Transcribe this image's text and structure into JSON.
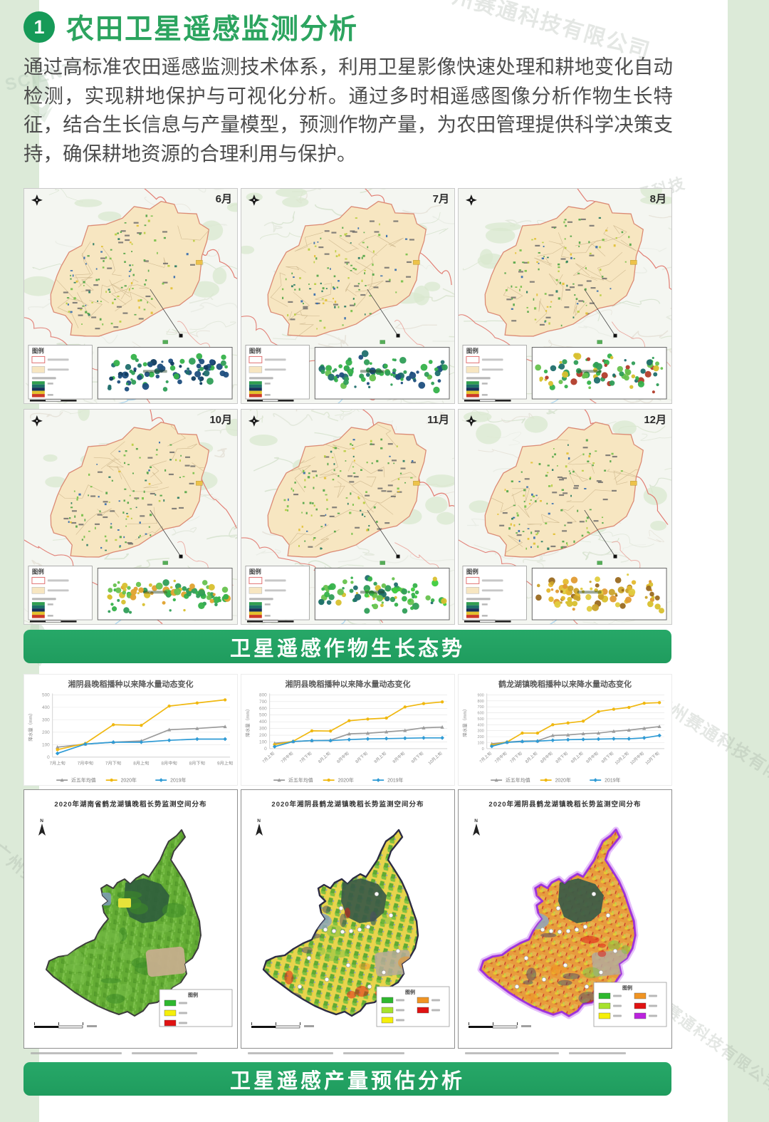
{
  "header": {
    "section_number": "1",
    "title": "农田卫星遥感监测分析",
    "paragraph": "通过高标准农田遥感监测技术体系，利用卫星影像快速处理和耕地变化自动检测，实现耕地保护与可视化分析。通过多时相遥感图像分析作物生长特征，结合生长信息与产量模型，预测作物产量，为农田管理提供科学决策支持，确保耕地资源的合理利用与保护。"
  },
  "colors": {
    "accent_green": "#23a263",
    "title_green": "#2ca45f",
    "page_bg": "#dcead8"
  },
  "watermarks": {
    "brand": "SCIENTO",
    "brand_cn": "赛通科技",
    "company": "广州赛通科技有限公司"
  },
  "satellite_maps": {
    "banner": "卫星遥感作物生长态势",
    "legend_title": "图例",
    "months": [
      "6月",
      "7月",
      "8月",
      "10月",
      "11月",
      "12月"
    ],
    "inset_palettes": [
      [
        "#1d4e7e",
        "#1d4e7e",
        "#0e3a5e",
        "#206f6d",
        "#2f9e57",
        "#2f9e57",
        "#35b24a"
      ],
      [
        "#2f9e57",
        "#2f9e57",
        "#35b24a",
        "#206f6d",
        "#1d4e7e",
        "#67c24e"
      ],
      [
        "#35b24a",
        "#2f9e57",
        "#67c24e",
        "#d8c02e",
        "#206f6d",
        "#b23c2a"
      ],
      [
        "#35b24a",
        "#67c24e",
        "#2f9e57",
        "#d8c02e",
        "#e0a22e"
      ],
      [
        "#3ecc3e",
        "#35b24a",
        "#2f9e57",
        "#67c24e",
        "#206f6d",
        "#d8c02e"
      ],
      [
        "#e5b92e",
        "#e09b33",
        "#caa32a",
        "#d8c02e",
        "#9a6a20",
        "#e0cc3e"
      ]
    ]
  },
  "chart_data": [
    {
      "type": "line",
      "title": "湘阴县晚稻播种以来降水量动态变化",
      "ylabel": "降水量（mm）",
      "ylim": [
        0,
        500
      ],
      "ytick": 100,
      "grid": true,
      "legend_position": "bottom",
      "categories": [
        "7月上旬",
        "7月中旬",
        "7月下旬",
        "8月上旬",
        "8月中旬",
        "8月下旬",
        "9月上旬"
      ],
      "series": [
        {
          "name": "近五年均值",
          "color": "#9b9b9b",
          "values": [
            80,
            105,
            120,
            130,
            220,
            230,
            245
          ]
        },
        {
          "name": "2020年",
          "color": "#f0b810",
          "values": [
            60,
            110,
            260,
            255,
            410,
            435,
            460
          ]
        },
        {
          "name": "2019年",
          "color": "#2f9bd5",
          "values": [
            30,
            105,
            120,
            120,
            135,
            145,
            145
          ]
        }
      ]
    },
    {
      "type": "line",
      "title": "湘阴县晚稻播种以来降水量动态变化",
      "ylabel": "降水量（mm）",
      "ylim": [
        0,
        800
      ],
      "ytick": 100,
      "grid": true,
      "legend_position": "bottom",
      "categories": [
        "7月上旬",
        "7月中旬",
        "7月下旬",
        "8月上旬",
        "8月中旬",
        "8月下旬",
        "9月上旬",
        "9月中旬",
        "9月下旬",
        "10月上旬"
      ],
      "series": [
        {
          "name": "近五年均值",
          "color": "#9b9b9b",
          "values": [
            80,
            105,
            120,
            125,
            220,
            230,
            250,
            270,
            310,
            320
          ]
        },
        {
          "name": "2020年",
          "color": "#f0b810",
          "values": [
            60,
            110,
            265,
            262,
            415,
            440,
            455,
            620,
            670,
            695
          ]
        },
        {
          "name": "2019年",
          "color": "#2f9bd5",
          "values": [
            30,
            105,
            120,
            120,
            135,
            145,
            150,
            155,
            160,
            160
          ]
        }
      ]
    },
    {
      "type": "line",
      "title": "鹤龙湖镇晚稻播种以来降水量动态变化",
      "ylabel": "降水量（mm）",
      "ylim": [
        0,
        900
      ],
      "ytick": 100,
      "grid": true,
      "legend_position": "bottom",
      "categories": [
        "7月上旬",
        "7月中旬",
        "7月下旬",
        "8月上旬",
        "8月中旬",
        "8月下旬",
        "9月上旬",
        "9月中旬",
        "9月下旬",
        "10月上旬",
        "10月中旬",
        "10月下旬"
      ],
      "series": [
        {
          "name": "近五年均值",
          "color": "#9b9b9b",
          "values": [
            80,
            110,
            125,
            130,
            220,
            230,
            250,
            260,
            290,
            310,
            340,
            370
          ]
        },
        {
          "name": "2020年",
          "color": "#f0b810",
          "values": [
            60,
            110,
            260,
            260,
            400,
            430,
            460,
            620,
            660,
            690,
            760,
            770
          ]
        },
        {
          "name": "2019年",
          "color": "#2f9bd5",
          "values": [
            40,
            105,
            120,
            125,
            140,
            150,
            155,
            160,
            165,
            165,
            180,
            220
          ]
        }
      ]
    }
  ],
  "yield_maps": {
    "banner": "卫星遥感产量预估分析",
    "legend_title": "图例",
    "panels": [
      {
        "title": "2020年湖南省鹤龙湖镇晚稻长势监测空间分布",
        "style": "green",
        "base_palette": [
          "#63ab34",
          "#6fb83c",
          "#58a02c",
          "#7ec24e",
          "#4e9428"
        ],
        "legend": [
          "#2eb82e",
          "#f5ef0a",
          "#e01212"
        ]
      },
      {
        "title": "2020年湘阴县鹤龙湖镇晚稻长势监测空间分布",
        "style": "mosaic",
        "base_palette": [
          "#e8d44d",
          "#7dc242",
          "#e89b3c",
          "#b9d94c",
          "#8fa0b5",
          "#e8c832",
          "#5aa832"
        ],
        "legend": [
          "#2eb82e",
          "#a7e22d",
          "#f5ef0a",
          "#f09423",
          "#e01212"
        ]
      },
      {
        "title": "2020年湘阴县鹤龙湖镇晚稻长势监测空间分布",
        "style": "mosaic-purple",
        "border_glow": "#b04ae0",
        "base_palette": [
          "#e89b3c",
          "#e8c832",
          "#d4642a",
          "#b9d94c",
          "#cc3a2a",
          "#9aa8bb",
          "#e8b14d"
        ],
        "legend": [
          "#2eb82e",
          "#a7e22d",
          "#f5ef0a",
          "#f09423",
          "#e01212",
          "#bb22dd"
        ]
      }
    ]
  }
}
